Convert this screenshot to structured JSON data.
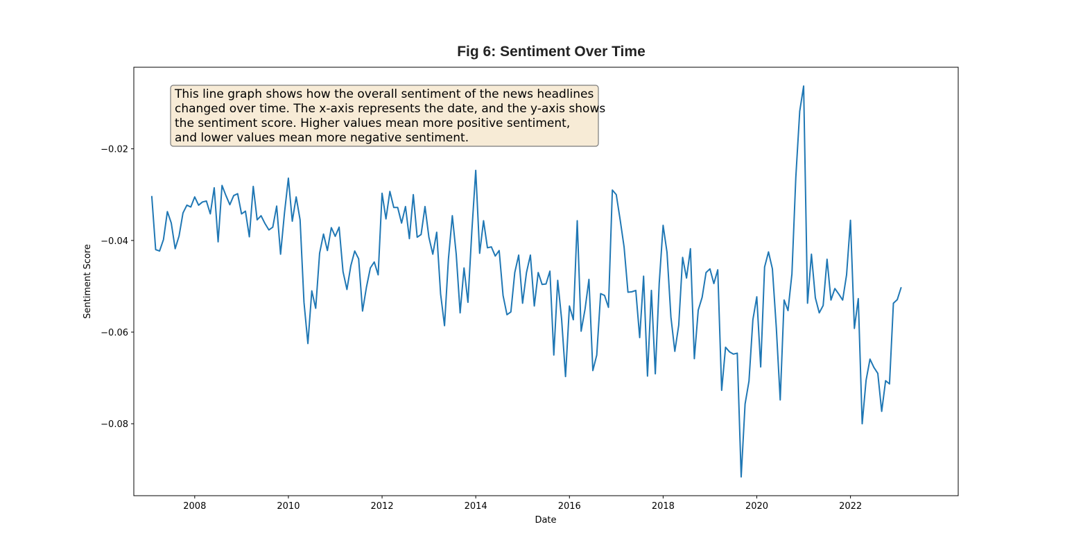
{
  "chart_data": {
    "type": "line",
    "title": "Fig 6: Sentiment Over Time",
    "xlabel": "Date",
    "ylabel": "Sentiment Score",
    "xlim": [
      2006.7,
      2024.3
    ],
    "ylim": [
      -0.0957,
      -0.0022
    ],
    "x_ticks": [
      2008,
      2010,
      2012,
      2014,
      2016,
      2018,
      2020,
      2022
    ],
    "x_tick_labels": [
      "2008",
      "2010",
      "2012",
      "2014",
      "2016",
      "2018",
      "2020",
      "2022"
    ],
    "y_ticks": [
      -0.02,
      -0.04,
      -0.06,
      -0.08
    ],
    "y_tick_labels": [
      "−0.02",
      "−0.04",
      "−0.06",
      "−0.08"
    ],
    "grid": false,
    "annotation_lines": [
      "This line graph shows how the overall sentiment of the news headlines",
      "changed over time. The x-axis represents the date, and the y-axis shows",
      "the sentiment score. Higher values mean more positive sentiment,",
      "and lower values mean more negative sentiment."
    ],
    "series": [
      {
        "name": "Sentiment",
        "color": "#1f77b4",
        "start_year": 2007.083,
        "step": 0.0833333,
        "values": [
          -0.0303,
          -0.042,
          -0.0423,
          -0.0398,
          -0.0337,
          -0.0362,
          -0.0418,
          -0.039,
          -0.034,
          -0.0323,
          -0.0327,
          -0.0305,
          -0.0323,
          -0.0316,
          -0.0314,
          -0.0342,
          -0.0285,
          -0.0403,
          -0.028,
          -0.0302,
          -0.0322,
          -0.0302,
          -0.0298,
          -0.0342,
          -0.0336,
          -0.0392,
          -0.0282,
          -0.0355,
          -0.0346,
          -0.0363,
          -0.0377,
          -0.0371,
          -0.0325,
          -0.043,
          -0.034,
          -0.0264,
          -0.0358,
          -0.0305,
          -0.0355,
          -0.0535,
          -0.0625,
          -0.051,
          -0.0548,
          -0.0428,
          -0.0386,
          -0.0422,
          -0.0372,
          -0.0391,
          -0.0371,
          -0.0468,
          -0.0507,
          -0.0455,
          -0.0423,
          -0.044,
          -0.0554,
          -0.0502,
          -0.046,
          -0.0447,
          -0.0475,
          -0.0297,
          -0.0353,
          -0.0293,
          -0.0328,
          -0.0328,
          -0.0362,
          -0.0326,
          -0.0396,
          -0.03,
          -0.0393,
          -0.0387,
          -0.0326,
          -0.0393,
          -0.043,
          -0.0382,
          -0.0517,
          -0.0586,
          -0.0441,
          -0.0346,
          -0.043,
          -0.0558,
          -0.046,
          -0.0535,
          -0.038,
          -0.0247,
          -0.0428,
          -0.0357,
          -0.0416,
          -0.0414,
          -0.0434,
          -0.0422,
          -0.052,
          -0.0562,
          -0.0556,
          -0.047,
          -0.0432,
          -0.0537,
          -0.047,
          -0.0432,
          -0.0543,
          -0.047,
          -0.0496,
          -0.0495,
          -0.0467,
          -0.065,
          -0.0487,
          -0.0572,
          -0.0697,
          -0.0543,
          -0.0573,
          -0.0357,
          -0.0598,
          -0.055,
          -0.0485,
          -0.0684,
          -0.065,
          -0.0516,
          -0.052,
          -0.0546,
          -0.029,
          -0.03,
          -0.0355,
          -0.0414,
          -0.0513,
          -0.0512,
          -0.0509,
          -0.0612,
          -0.0478,
          -0.0696,
          -0.0509,
          -0.0691,
          -0.0494,
          -0.0367,
          -0.0426,
          -0.0567,
          -0.0642,
          -0.0585,
          -0.0437,
          -0.0482,
          -0.0418,
          -0.0658,
          -0.0552,
          -0.0524,
          -0.047,
          -0.0462,
          -0.0494,
          -0.0464,
          -0.0727,
          -0.0633,
          -0.0643,
          -0.0648,
          -0.0646,
          -0.0916,
          -0.0757,
          -0.0707,
          -0.0573,
          -0.0523,
          -0.0676,
          -0.0458,
          -0.0425,
          -0.0462,
          -0.059,
          -0.0748,
          -0.053,
          -0.0553,
          -0.0473,
          -0.0262,
          -0.0118,
          -0.0063,
          -0.0537,
          -0.043,
          -0.0525,
          -0.0558,
          -0.0542,
          -0.0441,
          -0.053,
          -0.0505,
          -0.0517,
          -0.053,
          -0.0475,
          -0.0356,
          -0.0592,
          -0.0527,
          -0.08,
          -0.0705,
          -0.0659,
          -0.0677,
          -0.069,
          -0.0773,
          -0.0706,
          -0.0713,
          -0.0537,
          -0.0529,
          -0.0502
        ]
      }
    ]
  }
}
